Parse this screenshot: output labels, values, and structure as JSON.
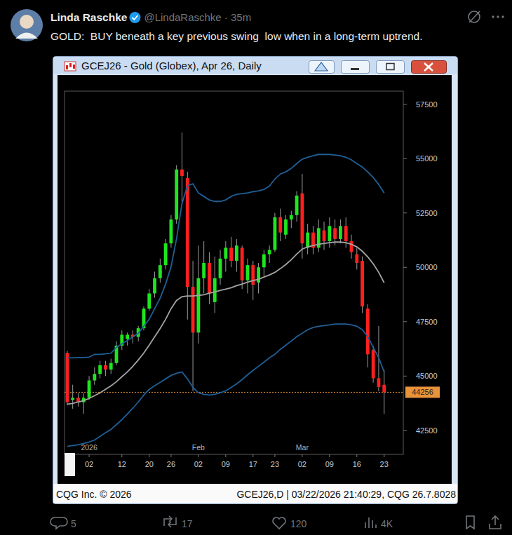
{
  "post": {
    "name": "Linda Raschke",
    "meta": "@LindaRaschke · 35m",
    "text": "GOLD:  BUY beneath a key previous swing  low when in a long-term uptrend.",
    "replies": 5,
    "reposts": 17,
    "likes": 120,
    "views": "4K"
  },
  "chart_data": {
    "type": "candlestick",
    "title": "GCEJ26 - Gold (Globex), Apr 26, Daily",
    "footer_left": "CQG Inc. © 2026",
    "footer_right": "GCEJ26,D | 03/22/2026 21:40:29, CQG 26.7.8028",
    "grid": false,
    "categories": [
      null,
      null,
      null,
      null,
      "02",
      null,
      null,
      null,
      null,
      null,
      "12",
      null,
      null,
      null,
      null,
      "20",
      null,
      null,
      null,
      "26",
      null,
      null,
      null,
      null,
      "02",
      null,
      null,
      null,
      null,
      "09",
      null,
      null,
      null,
      null,
      "17",
      null,
      null,
      null,
      "23",
      null,
      null,
      null,
      null,
      "02",
      null,
      null,
      null,
      null,
      "09",
      null,
      null,
      null,
      null,
      "16",
      null,
      null,
      null,
      null,
      "23",
      null,
      null,
      null
    ],
    "month_labels": [
      null,
      null,
      null,
      null,
      "2026",
      null,
      null,
      null,
      null,
      null,
      null,
      null,
      null,
      null,
      null,
      null,
      null,
      null,
      null,
      null,
      null,
      null,
      null,
      null,
      "Feb",
      null,
      null,
      null,
      null,
      null,
      null,
      null,
      null,
      null,
      null,
      null,
      null,
      null,
      null,
      null,
      null,
      null,
      null,
      "Mar",
      null,
      null,
      null,
      null,
      null,
      null,
      null,
      null,
      null,
      null,
      null,
      null,
      null,
      null,
      null,
      null,
      null,
      null
    ],
    "ylim": [
      41400,
      58100
    ],
    "yticks": [
      42500,
      45000,
      47500,
      50000,
      52500,
      55000,
      57500
    ],
    "series": [
      {
        "type": "candlestick",
        "open": [
          46060,
          43900,
          44000,
          43800,
          44000,
          44800,
          45100,
          45500,
          45300,
          45600,
          46400,
          46700,
          46900,
          46800,
          47200,
          48100,
          48800,
          49500,
          50100,
          51100,
          52200,
          54500,
          54100,
          49100,
          47000,
          49500,
          50200,
          48400,
          49500,
          50400,
          50900,
          50300,
          50900,
          49400,
          50100,
          49300,
          50000,
          50600,
          50800,
          52300,
          51500,
          52200,
          52400,
          53400,
          50900,
          51600,
          50900,
          51700,
          51200,
          51800,
          51300,
          51900,
          51200,
          50600,
          50300,
          48100,
          46200,
          44900,
          44600,
          null,
          null,
          null
        ],
        "high": [
          46160,
          44600,
          44200,
          44200,
          45000,
          45400,
          45700,
          45700,
          45800,
          46600,
          47100,
          47000,
          47100,
          47300,
          48200,
          49000,
          49800,
          50400,
          51300,
          52400,
          54700,
          56200,
          54400,
          50300,
          51000,
          51200,
          50700,
          50500,
          50800,
          51200,
          51400,
          51300,
          51000,
          50400,
          50300,
          50200,
          50800,
          51000,
          52500,
          52700,
          52400,
          52600,
          53500,
          54300,
          52000,
          51900,
          52200,
          52100,
          52300,
          52200,
          52200,
          52300,
          51500,
          50900,
          50500,
          48300,
          46400,
          47300,
          45300,
          null,
          null,
          null
        ],
        "low": [
          43650,
          43500,
          43600,
          43260,
          43900,
          44600,
          44900,
          45000,
          45100,
          45500,
          46200,
          46400,
          46500,
          46600,
          47100,
          48000,
          48600,
          49300,
          49900,
          50900,
          52000,
          52940,
          47600,
          44300,
          46500,
          48800,
          48300,
          47900,
          49200,
          49800,
          50000,
          49800,
          49000,
          48800,
          48500,
          48800,
          49600,
          50200,
          50700,
          51200,
          51300,
          51800,
          52100,
          50400,
          50600,
          50600,
          50700,
          50800,
          50900,
          51000,
          51100,
          50900,
          50400,
          49900,
          47900,
          45400,
          44700,
          44300,
          43260,
          null,
          null,
          null
        ],
        "close": [
          43800,
          44000,
          43800,
          44000,
          44800,
          45100,
          45500,
          45300,
          45600,
          46400,
          46900,
          46900,
          46800,
          47200,
          48100,
          48800,
          49500,
          50100,
          51100,
          52200,
          54500,
          54200,
          49100,
          47000,
          49500,
          50200,
          48800,
          49500,
          50400,
          50900,
          50300,
          51000,
          49400,
          50100,
          49200,
          50000,
          50600,
          50800,
          52300,
          51600,
          52200,
          52400,
          53300,
          51100,
          51600,
          50900,
          51800,
          51200,
          51900,
          51300,
          51900,
          51200,
          50700,
          50200,
          48200,
          46000,
          44900,
          44500,
          44256,
          null,
          null,
          null
        ]
      },
      {
        "type": "line",
        "color": "#1f5f97",
        "values": [
          45840,
          45840,
          45850,
          45850,
          45870,
          46000,
          46000,
          46020,
          46050,
          46320,
          46480,
          46640,
          46800,
          46970,
          47290,
          47610,
          48100,
          48580,
          49230,
          50030,
          51320,
          52940,
          53740,
          53840,
          53420,
          53260,
          53100,
          53030,
          53030,
          53100,
          53260,
          53360,
          53390,
          53420,
          53480,
          53520,
          53580,
          53740,
          54060,
          54290,
          54390,
          54550,
          54770,
          54970,
          55060,
          55130,
          55190,
          55190,
          55190,
          55160,
          55130,
          55060,
          54940,
          54770,
          54610,
          54390,
          54130,
          53810,
          53420,
          null,
          null,
          null
        ]
      },
      {
        "type": "line",
        "color": "#a3a3a3",
        "values": [
          43710,
          43740,
          43810,
          43870,
          43970,
          44100,
          44230,
          44390,
          44550,
          44740,
          44970,
          45190,
          45450,
          45740,
          46060,
          46420,
          46810,
          47190,
          47610,
          48100,
          48480,
          48650,
          48680,
          48680,
          48710,
          48740,
          48810,
          48870,
          48940,
          49000,
          49060,
          49160,
          49230,
          49320,
          49390,
          49450,
          49550,
          49650,
          49770,
          49940,
          50130,
          50350,
          50610,
          50840,
          50940,
          51000,
          51060,
          51100,
          51130,
          51160,
          51160,
          51130,
          51060,
          50940,
          50740,
          50480,
          50160,
          49770,
          49290,
          null,
          null,
          null
        ]
      },
      {
        "type": "line",
        "color": "#1f5f97",
        "values": [
          41770,
          41810,
          41840,
          41900,
          41970,
          42060,
          42230,
          42390,
          42550,
          42770,
          43000,
          43260,
          43520,
          43810,
          44130,
          44390,
          44550,
          44710,
          44870,
          45030,
          45130,
          45190,
          44870,
          44480,
          44230,
          44160,
          44130,
          44160,
          44230,
          44320,
          44480,
          44640,
          44840,
          45060,
          45260,
          45450,
          45640,
          45840,
          46000,
          46230,
          46420,
          46610,
          46810,
          46970,
          47130,
          47230,
          47290,
          47320,
          47350,
          47390,
          47390,
          47390,
          47350,
          47290,
          47130,
          46810,
          46320,
          45840,
          45190,
          null,
          null,
          null
        ]
      }
    ],
    "annotations": [
      {
        "label": "44256",
        "value": 44256,
        "color": "#e8923a"
      }
    ]
  }
}
